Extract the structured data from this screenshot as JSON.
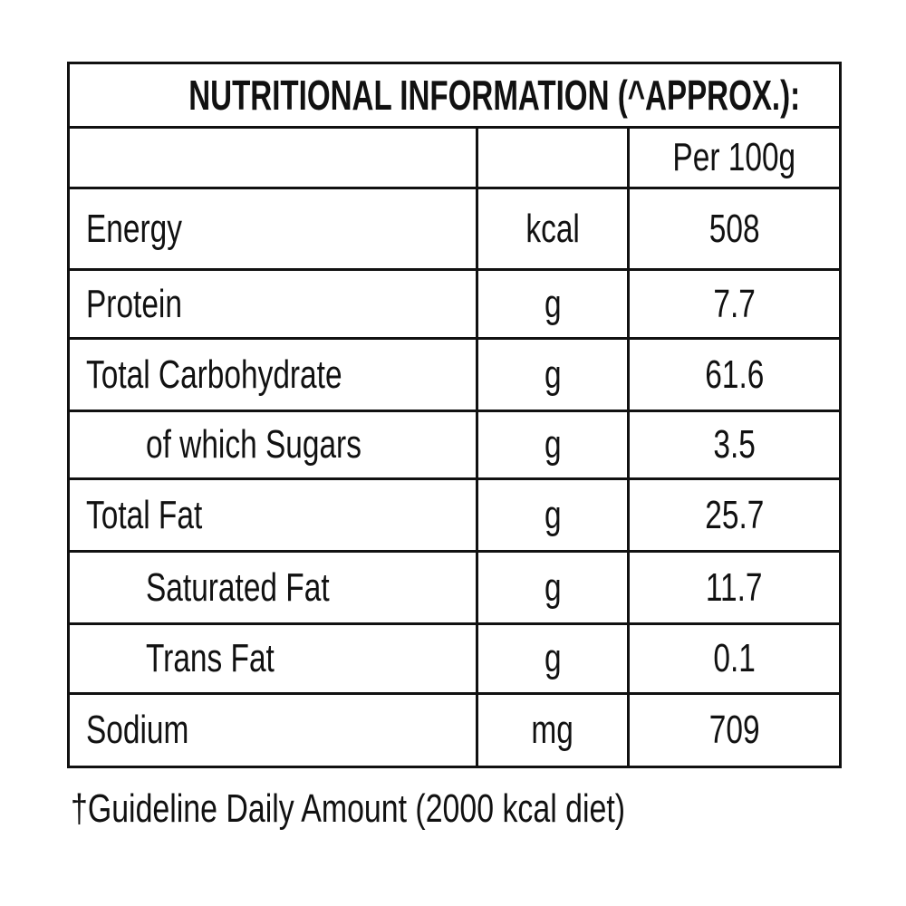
{
  "title": "NUTRITIONAL INFORMATION (^APPROX.):",
  "table": {
    "header": [
      "",
      "",
      "Per 100g"
    ],
    "rows": [
      [
        "Energy",
        "kcal",
        "508"
      ],
      [
        "Protein",
        "g",
        "7.7"
      ],
      [
        "Total Carbohydrate",
        "g",
        "61.6"
      ],
      [
        "of which Sugars",
        "g",
        "3.5"
      ],
      [
        "Total Fat",
        "g",
        "25.7"
      ],
      [
        "Saturated Fat",
        "g",
        "11.7"
      ],
      [
        "Trans Fat",
        "g",
        "0.1"
      ],
      [
        "Sodium",
        "mg",
        "709"
      ]
    ]
  },
  "footnote": "†Guideline Daily Amount (2000 kcal diet)"
}
